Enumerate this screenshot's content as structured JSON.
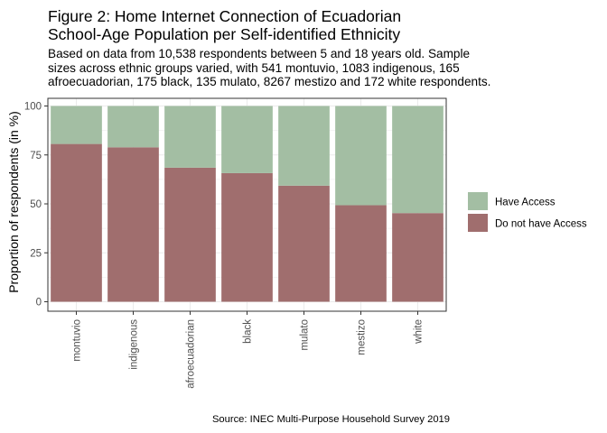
{
  "title_lines": [
    "Figure 2: Home Internet Connection of Ecuadorian",
    "School-Age Population per Self-identified Ethnicity"
  ],
  "subtitle_lines": [
    "Based on data from 10,538 respondents between 5 and 18 years old. Sample",
    "sizes across ethnic groups varied, with 541 montuvio, 1083 indigenous, 165",
    "afroecuadorian, 175 black, 135 mulato, 8267 mestizo and 172 white respondents."
  ],
  "caption": "Source: INEC Multi-Purpose Household Survey 2019",
  "colors": {
    "have_access": "#a3bea3",
    "no_access": "#a06e6e",
    "grid": "#ebebeb",
    "panel_border": "#333333",
    "axis_text": "#4d4d4d"
  },
  "chart_data": {
    "type": "bar",
    "stacked": true,
    "categories": [
      "montuvio",
      "indigenous",
      "afroecuadorian",
      "black",
      "mulato",
      "mestizo",
      "white"
    ],
    "series": [
      {
        "name": "Do not have Access",
        "values": [
          80.6,
          78.9,
          68.5,
          65.7,
          59.3,
          49.3,
          45.3
        ]
      },
      {
        "name": "Have Access",
        "values": [
          19.4,
          21.1,
          31.5,
          34.3,
          40.7,
          50.7,
          54.7
        ]
      }
    ],
    "ylabel": "Proportion of respondents (in %)",
    "xlabel": "",
    "ylim": [
      0,
      100
    ],
    "yticks": [
      0,
      25,
      50,
      75,
      100
    ],
    "legend": {
      "position": "right",
      "entries": [
        "Have Access",
        "Do not have Access"
      ]
    },
    "grid": true
  }
}
